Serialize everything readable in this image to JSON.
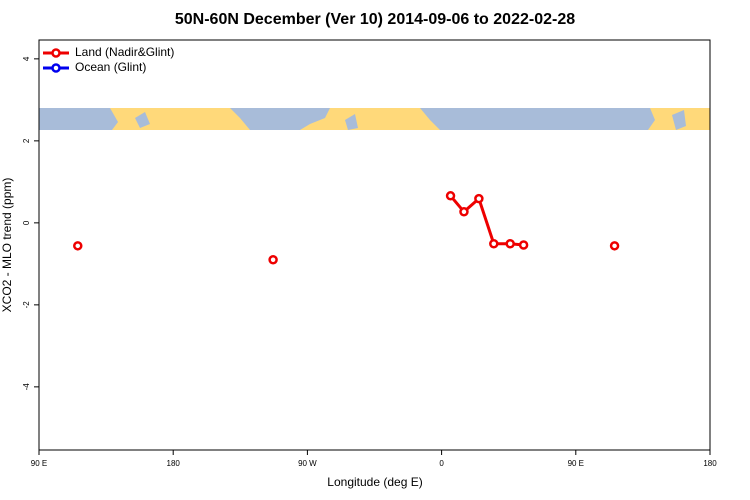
{
  "chart_data": {
    "type": "line",
    "title": "50N-60N December (Ver 10)   2014-09-06 to 2022-02-28",
    "xlabel": "Longitude (deg E)",
    "ylabel": "XCO2 - MLO trend (ppm)",
    "xlim": [
      -270,
      180
    ],
    "xticks": [
      {
        "value": -270,
        "label": "90 E"
      },
      {
        "value": -180,
        "label": "180"
      },
      {
        "value": -90,
        "label": "90 W"
      },
      0,
      {
        "value": 90,
        "label": "90 E"
      },
      180
    ],
    "ylim": [
      -5.54,
      4.46
    ],
    "yticks": [
      -4,
      -2,
      0,
      2,
      4
    ],
    "legend": "top-left",
    "series": [
      {
        "name": "Land (Nadir&Glint)",
        "color": "#ee0000",
        "x": [
          -244,
          -113,
          6,
          15,
          25,
          35,
          46,
          55,
          116
        ],
        "values": [
          -0.56,
          -0.9,
          0.66,
          0.27,
          0.59,
          -0.51,
          -0.51,
          -0.54,
          -0.56
        ]
      },
      {
        "name": "Ocean (Glint)",
        "color": "#0000ee",
        "x": [],
        "values": []
      }
    ]
  }
}
